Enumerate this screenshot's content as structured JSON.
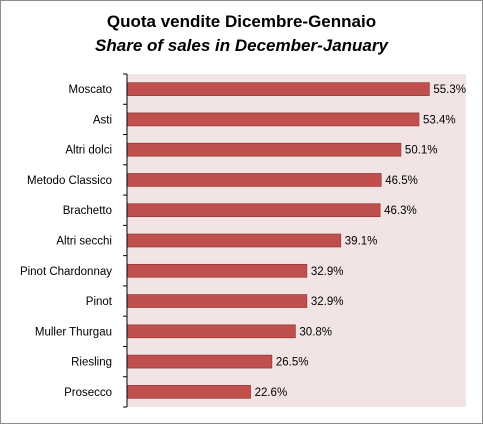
{
  "chart_data": {
    "type": "bar",
    "orientation": "horizontal",
    "title": "Quota vendite Dicembre-Gennaio",
    "subtitle": "Share of sales in December-January",
    "categories": [
      "Moscato",
      "Asti",
      "Altri dolci",
      "Metodo Classico",
      "Brachetto",
      "Altri secchi",
      "Pinot Chardonnay",
      "Pinot",
      "Muller Thurgau",
      "Riesling",
      "Prosecco"
    ],
    "values": [
      55.3,
      53.4,
      50.1,
      46.5,
      46.3,
      39.1,
      32.9,
      32.9,
      30.8,
      26.5,
      22.6
    ],
    "value_labels": [
      "55.3%",
      "53.4%",
      "50.1%",
      "46.5%",
      "46.3%",
      "39.1%",
      "32.9%",
      "32.9%",
      "30.8%",
      "26.5%",
      "22.6%"
    ],
    "xlim": [
      0,
      62
    ],
    "grid": false,
    "colors": {
      "bar_fill": "#c0504d",
      "bar_stroke": "#8b2e2c",
      "plot_background": "#f2e4e4",
      "axis": "#000000"
    }
  }
}
